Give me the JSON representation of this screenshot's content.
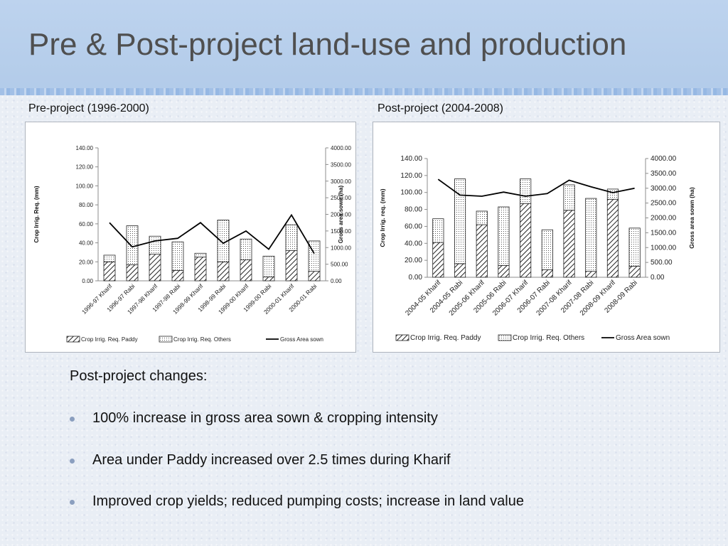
{
  "slide": {
    "title": "Pre & Post-project land-use and production"
  },
  "captions": {
    "pre": "Pre-project (1996-2000)",
    "post": "Post-project (2004-2008)"
  },
  "colors": {
    "bar_stroke": "#222222",
    "line": "#000000",
    "axis": "#8c8c8c"
  },
  "notes": {
    "heading": "Post-project changes:",
    "bullets": [
      "100% increase in gross area sown & cropping intensity",
      "Area under Paddy increased over 2.5 times during Kharif",
      "Improved crop yields; reduced pumping costs; increase in land value"
    ]
  },
  "chart_data": [
    {
      "type": "bar",
      "stacked": true,
      "secondary_line": true,
      "categories": [
        "1996-97 Kharif",
        "1996-97 Rabi",
        "1997-98 Kharif",
        "1997-98 Rabi",
        "1998-99 Kharif",
        "1998-99 Rabi",
        "1999-00 Kharif",
        "1999-00 Rabi",
        "2000-01 Kharif",
        "2000-01 Rabi"
      ],
      "series": [
        {
          "name": "Crop Irrig. Req. Paddy",
          "kind": "bar",
          "axis": "left",
          "pattern": "diagonal",
          "values": [
            20,
            17,
            28,
            11,
            25,
            20,
            22,
            4,
            32,
            10
          ]
        },
        {
          "name": "Crop Irrig. Req. Others",
          "kind": "bar",
          "axis": "left",
          "pattern": "dots",
          "values": [
            7,
            41,
            19,
            30,
            4,
            44,
            22,
            22,
            27,
            32
          ]
        },
        {
          "name": "Gross Area sown",
          "kind": "line",
          "axis": "right",
          "values": [
            1750,
            1020,
            1200,
            1280,
            1750,
            1130,
            1500,
            950,
            1980,
            820
          ]
        }
      ],
      "ylabel": "Crop Irrig. Req. (mm)",
      "y2label": "Gross area sown (ha)",
      "ylim": [
        0,
        140
      ],
      "y2lim": [
        0,
        4000
      ],
      "yticks": [
        "0.00",
        "20.00",
        "40.00",
        "60.00",
        "80.00",
        "100.00",
        "120.00",
        "140.00"
      ],
      "y2ticks": [
        "0.00",
        "500.00",
        "1000.00",
        "1500.00",
        "2000.00",
        "2500.00",
        "3000.00",
        "3500.00",
        "4000.00"
      ],
      "legend_position": "bottom"
    },
    {
      "type": "bar",
      "stacked": true,
      "secondary_line": true,
      "categories": [
        "2004-05 Kharif",
        "2004-05 Rabi",
        "2005-06 Kharif",
        "2005-06 Rabi",
        "2006-07 Kharif",
        "2006-07 Rabi",
        "2007-08 Kharif",
        "2007-08 Rabi",
        "2008-09 Kharif",
        "2008-09 Rabi"
      ],
      "series": [
        {
          "name": "Crop Irrig. Req. Paddy",
          "kind": "bar",
          "axis": "left",
          "pattern": "diagonal",
          "values": [
            41,
            16,
            62,
            14,
            87,
            9,
            79,
            7,
            92,
            13
          ]
        },
        {
          "name": "Crop Irrig. Req. Others",
          "kind": "bar",
          "axis": "left",
          "pattern": "dots",
          "values": [
            28,
            100,
            16,
            69,
            29,
            47,
            30,
            86,
            12,
            45
          ]
        },
        {
          "name": "Gross Area sown",
          "kind": "line",
          "axis": "right",
          "values": [
            3300,
            2770,
            2730,
            2870,
            2730,
            2820,
            3270,
            3050,
            2850,
            3000
          ]
        }
      ],
      "ylabel": "Crop Irrig. req. (mm)",
      "y2label": "Gross area sown (ha)",
      "ylim": [
        0,
        140
      ],
      "y2lim": [
        0,
        4000
      ],
      "yticks": [
        "0.00",
        "20.00",
        "40.00",
        "60.00",
        "80.00",
        "100.00",
        "120.00",
        "140.00"
      ],
      "y2ticks": [
        "0.00",
        "500.00",
        "1000.00",
        "1500.00",
        "2000.00",
        "2500.00",
        "3000.00",
        "3500.00",
        "4000.00"
      ],
      "legend_position": "bottom"
    }
  ]
}
